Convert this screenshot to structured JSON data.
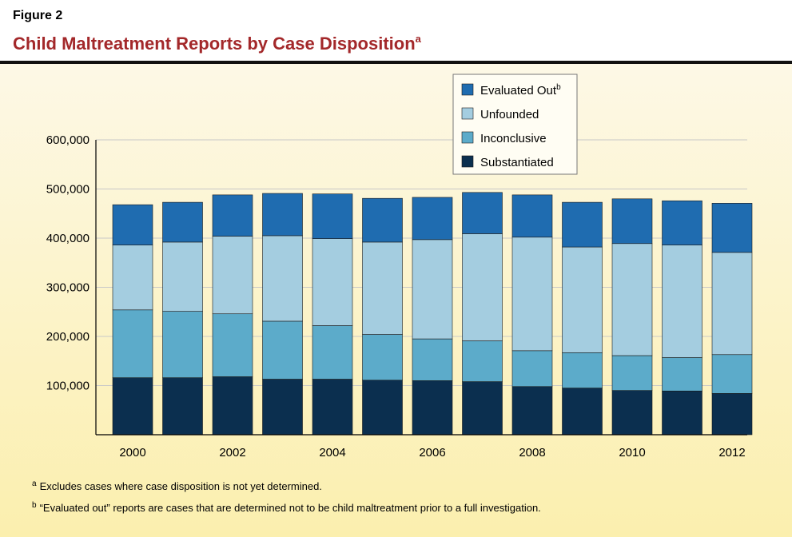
{
  "figure_label": "Figure 2",
  "chart_data": {
    "type": "stacked_bar",
    "title": "Child Maltreatment Reports by Case Disposition",
    "title_footnote_mark": "a",
    "categories": [
      "2000",
      null,
      "2002",
      null,
      "2004",
      null,
      "2006",
      null,
      "2008",
      null,
      "2010",
      null,
      "2012"
    ],
    "series": [
      {
        "name": "Substantiated",
        "color": "#0b2f4f",
        "values": [
          116000,
          116000,
          118000,
          113000,
          113000,
          111000,
          110000,
          108000,
          98000,
          95000,
          90000,
          89000,
          84000
        ]
      },
      {
        "name": "Inconclusive",
        "color": "#5cabca",
        "values": [
          138000,
          135000,
          128000,
          118000,
          109000,
          93000,
          85000,
          83000,
          73000,
          72000,
          71000,
          68000,
          79000
        ]
      },
      {
        "name": "Unfounded",
        "color": "#a4cde0",
        "values": [
          132000,
          141000,
          158000,
          174000,
          177000,
          188000,
          202000,
          218000,
          231000,
          215000,
          228000,
          229000,
          208000
        ]
      },
      {
        "name": "Evaluated Out",
        "footnote_mark": "b",
        "color": "#1f6cb0",
        "values": [
          82000,
          81000,
          84000,
          86000,
          91000,
          89000,
          86000,
          84000,
          86000,
          91000,
          91000,
          90000,
          100000
        ]
      }
    ],
    "ylim": [
      0,
      600000
    ],
    "yticks": [
      {
        "value": 100000,
        "label": "100,000"
      },
      {
        "value": 200000,
        "label": "200,000"
      },
      {
        "value": 300000,
        "label": "300,000"
      },
      {
        "value": 400000,
        "label": "400,000"
      },
      {
        "value": 500000,
        "label": "500,000"
      },
      {
        "value": 600000,
        "label": "600,000"
      }
    ],
    "grid": true,
    "legend": "top-right"
  },
  "footnotes": [
    {
      "mark": "a",
      "text": "Excludes cases where case disposition is not yet determined."
    },
    {
      "mark": "b",
      "text": "“Evaluated out” reports are cases that are determined not to be child maltreatment prior to a full investigation."
    }
  ]
}
